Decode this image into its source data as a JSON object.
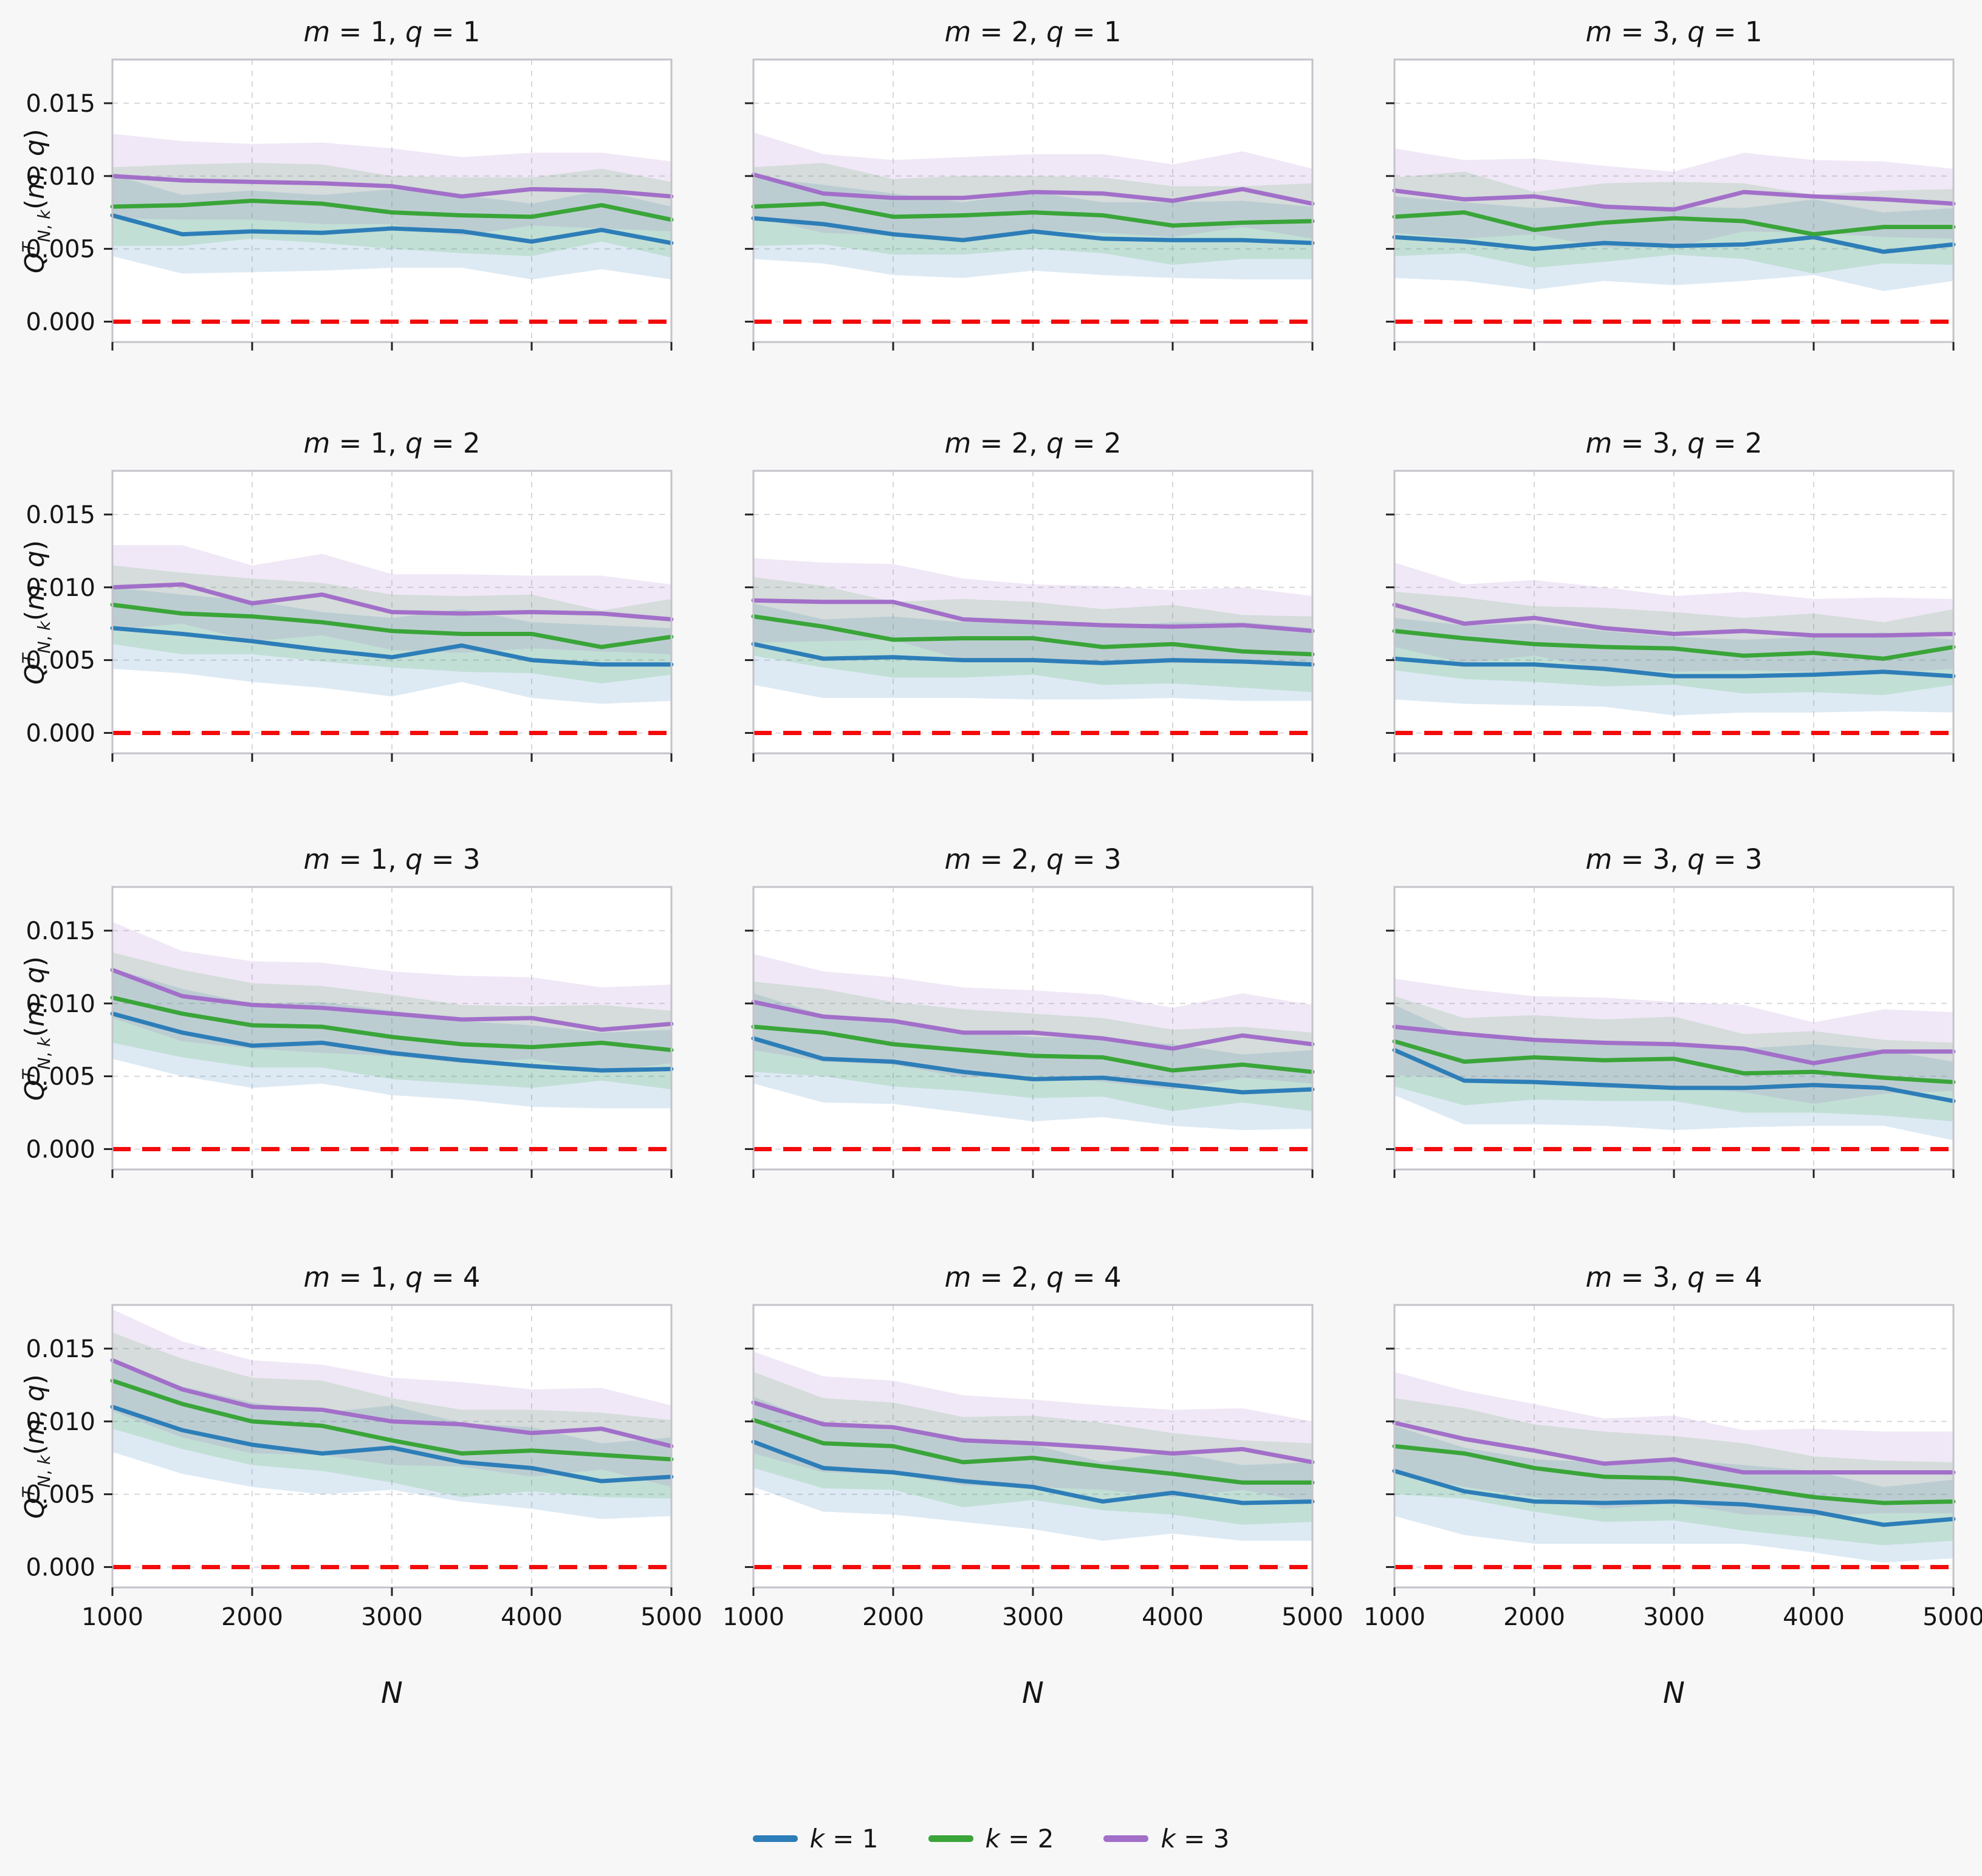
{
  "figure": {
    "xlabel": "N",
    "ylabel": {
      "base": "Q",
      "sup": "T",
      "sub": "N, k",
      "args": "(m, q)"
    },
    "x_values": [
      1000,
      1500,
      2000,
      2500,
      3000,
      3500,
      4000,
      4500,
      5000
    ],
    "x_ticks": [
      1000,
      2000,
      3000,
      4000,
      5000
    ],
    "x_tick_labels": [
      "1000",
      "2000",
      "3000",
      "4000",
      "5000"
    ],
    "x_gridlines": [
      2000,
      3000,
      4000
    ],
    "y_ticks": [
      0.0,
      0.005,
      0.01,
      0.015
    ],
    "y_tick_labels": [
      "0.000",
      "0.005",
      "0.010",
      "0.015"
    ],
    "ylim": [
      -0.0014,
      0.018
    ],
    "grid": true,
    "legend_position": "bottom-center",
    "legend": [
      {
        "label": "k = 1",
        "color": "#2d7eb8"
      },
      {
        "label": "k = 2",
        "color": "#3aa539"
      },
      {
        "label": "k = 3",
        "color": "#a26fc9"
      }
    ],
    "zero_line": {
      "y": 0.0,
      "color": "#f30b0b",
      "style": "dashed"
    },
    "background": "#f7f7f8",
    "panel_background": "#ffffff"
  },
  "chart_data": [
    {
      "type": "line",
      "title": "m = 1, q = 1",
      "m": 1,
      "q": 1,
      "series": [
        {
          "name": "k = 1",
          "values": [
            0.0073,
            0.006,
            0.0062,
            0.0061,
            0.0064,
            0.0062,
            0.0055,
            0.0063,
            0.0054
          ],
          "band_halfwidth": [
            0.0028,
            0.0027,
            0.0028,
            0.0026,
            0.0027,
            0.0025,
            0.0026,
            0.0027,
            0.0025
          ]
        },
        {
          "name": "k = 2",
          "values": [
            0.0079,
            0.008,
            0.0083,
            0.0081,
            0.0075,
            0.0073,
            0.0072,
            0.008,
            0.007
          ],
          "band_halfwidth": [
            0.0027,
            0.0028,
            0.0026,
            0.0027,
            0.0025,
            0.0026,
            0.0027,
            0.0025,
            0.0026
          ]
        },
        {
          "name": "k = 3",
          "values": [
            0.01,
            0.0097,
            0.0096,
            0.0095,
            0.0093,
            0.0086,
            0.0091,
            0.009,
            0.0086
          ],
          "band_halfwidth": [
            0.0029,
            0.0027,
            0.0026,
            0.0028,
            0.0026,
            0.0027,
            0.0025,
            0.0026,
            0.0024
          ]
        }
      ]
    },
    {
      "type": "line",
      "title": "m = 2, q = 1",
      "m": 2,
      "q": 1,
      "series": [
        {
          "name": "k = 1",
          "values": [
            0.0071,
            0.0067,
            0.006,
            0.0056,
            0.0062,
            0.0057,
            0.0056,
            0.0056,
            0.0054
          ],
          "band_halfwidth": [
            0.0028,
            0.0027,
            0.0028,
            0.0026,
            0.0027,
            0.0025,
            0.0026,
            0.0027,
            0.0025
          ]
        },
        {
          "name": "k = 2",
          "values": [
            0.0079,
            0.0081,
            0.0072,
            0.0073,
            0.0075,
            0.0073,
            0.0066,
            0.0068,
            0.0069
          ],
          "band_halfwidth": [
            0.0027,
            0.0028,
            0.0026,
            0.0027,
            0.0025,
            0.0026,
            0.0027,
            0.0025,
            0.0026
          ]
        },
        {
          "name": "k = 3",
          "values": [
            0.0101,
            0.0088,
            0.0085,
            0.0085,
            0.0089,
            0.0088,
            0.0083,
            0.0091,
            0.0081
          ],
          "band_halfwidth": [
            0.0029,
            0.0027,
            0.0026,
            0.0028,
            0.0026,
            0.0027,
            0.0025,
            0.0026,
            0.0024
          ]
        }
      ]
    },
    {
      "type": "line",
      "title": "m = 3, q = 1",
      "m": 3,
      "q": 1,
      "series": [
        {
          "name": "k = 1",
          "values": [
            0.0058,
            0.0055,
            0.005,
            0.0054,
            0.0052,
            0.0053,
            0.0058,
            0.0048,
            0.0053
          ],
          "band_halfwidth": [
            0.0028,
            0.0027,
            0.0028,
            0.0026,
            0.0027,
            0.0025,
            0.0026,
            0.0027,
            0.0025
          ]
        },
        {
          "name": "k = 2",
          "values": [
            0.0072,
            0.0075,
            0.0063,
            0.0068,
            0.0071,
            0.0069,
            0.006,
            0.0065,
            0.0065
          ],
          "band_halfwidth": [
            0.0027,
            0.0028,
            0.0026,
            0.0027,
            0.0025,
            0.0026,
            0.0027,
            0.0025,
            0.0026
          ]
        },
        {
          "name": "k = 3",
          "values": [
            0.009,
            0.0084,
            0.0086,
            0.0079,
            0.0077,
            0.0089,
            0.0086,
            0.0084,
            0.0081
          ],
          "band_halfwidth": [
            0.0029,
            0.0027,
            0.0026,
            0.0028,
            0.0026,
            0.0027,
            0.0025,
            0.0026,
            0.0024
          ]
        }
      ]
    },
    {
      "type": "line",
      "title": "m = 1, q = 2",
      "m": 1,
      "q": 2,
      "series": [
        {
          "name": "k = 1",
          "values": [
            0.0072,
            0.0068,
            0.0063,
            0.0057,
            0.0052,
            0.006,
            0.005,
            0.0047,
            0.0047
          ],
          "band_halfwidth": [
            0.0028,
            0.0027,
            0.0028,
            0.0026,
            0.0027,
            0.0025,
            0.0026,
            0.0027,
            0.0025
          ]
        },
        {
          "name": "k = 2",
          "values": [
            0.0088,
            0.0082,
            0.008,
            0.0076,
            0.007,
            0.0068,
            0.0068,
            0.0059,
            0.0066
          ],
          "band_halfwidth": [
            0.0027,
            0.0028,
            0.0026,
            0.0027,
            0.0025,
            0.0026,
            0.0027,
            0.0025,
            0.0026
          ]
        },
        {
          "name": "k = 3",
          "values": [
            0.01,
            0.0102,
            0.0089,
            0.0095,
            0.0083,
            0.0082,
            0.0083,
            0.0082,
            0.0078
          ],
          "band_halfwidth": [
            0.0029,
            0.0027,
            0.0026,
            0.0028,
            0.0026,
            0.0027,
            0.0025,
            0.0026,
            0.0024
          ]
        }
      ]
    },
    {
      "type": "line",
      "title": "m = 2, q = 2",
      "m": 2,
      "q": 2,
      "series": [
        {
          "name": "k = 1",
          "values": [
            0.0061,
            0.0051,
            0.0052,
            0.005,
            0.005,
            0.0048,
            0.005,
            0.0049,
            0.0047
          ],
          "band_halfwidth": [
            0.0028,
            0.0027,
            0.0028,
            0.0026,
            0.0027,
            0.0025,
            0.0026,
            0.0027,
            0.0025
          ]
        },
        {
          "name": "k = 2",
          "values": [
            0.008,
            0.0073,
            0.0064,
            0.0065,
            0.0065,
            0.0059,
            0.0061,
            0.0056,
            0.0054
          ],
          "band_halfwidth": [
            0.0027,
            0.0028,
            0.0026,
            0.0027,
            0.0025,
            0.0026,
            0.0027,
            0.0025,
            0.0026
          ]
        },
        {
          "name": "k = 3",
          "values": [
            0.0091,
            0.009,
            0.009,
            0.0078,
            0.0076,
            0.0074,
            0.0073,
            0.0074,
            0.007
          ],
          "band_halfwidth": [
            0.0029,
            0.0027,
            0.0026,
            0.0028,
            0.0026,
            0.0027,
            0.0025,
            0.0026,
            0.0024
          ]
        }
      ]
    },
    {
      "type": "line",
      "title": "m = 3, q = 2",
      "m": 3,
      "q": 2,
      "series": [
        {
          "name": "k = 1",
          "values": [
            0.0051,
            0.0047,
            0.0047,
            0.0044,
            0.0039,
            0.0039,
            0.004,
            0.0042,
            0.0039
          ],
          "band_halfwidth": [
            0.0028,
            0.0027,
            0.0028,
            0.0026,
            0.0027,
            0.0025,
            0.0026,
            0.0027,
            0.0025
          ]
        },
        {
          "name": "k = 2",
          "values": [
            0.007,
            0.0065,
            0.0061,
            0.0059,
            0.0058,
            0.0053,
            0.0055,
            0.0051,
            0.0059
          ],
          "band_halfwidth": [
            0.0027,
            0.0028,
            0.0026,
            0.0027,
            0.0025,
            0.0026,
            0.0027,
            0.0025,
            0.0026
          ]
        },
        {
          "name": "k = 3",
          "values": [
            0.0088,
            0.0075,
            0.0079,
            0.0072,
            0.0068,
            0.007,
            0.0067,
            0.0067,
            0.0068
          ],
          "band_halfwidth": [
            0.0029,
            0.0027,
            0.0026,
            0.0028,
            0.0026,
            0.0027,
            0.0025,
            0.0026,
            0.0024
          ]
        }
      ]
    },
    {
      "type": "line",
      "title": "m = 1, q = 3",
      "m": 1,
      "q": 3,
      "series": [
        {
          "name": "k = 1",
          "values": [
            0.0093,
            0.008,
            0.0071,
            0.0073,
            0.0066,
            0.0061,
            0.0057,
            0.0054,
            0.0055
          ],
          "band_halfwidth": [
            0.0031,
            0.003,
            0.0029,
            0.0028,
            0.0029,
            0.0027,
            0.0028,
            0.0026,
            0.0027
          ]
        },
        {
          "name": "k = 2",
          "values": [
            0.0104,
            0.0093,
            0.0085,
            0.0084,
            0.0077,
            0.0072,
            0.007,
            0.0073,
            0.0068
          ],
          "band_halfwidth": [
            0.0031,
            0.003,
            0.0029,
            0.0028,
            0.0029,
            0.0027,
            0.0028,
            0.0026,
            0.0027
          ]
        },
        {
          "name": "k = 3",
          "values": [
            0.0123,
            0.0105,
            0.0099,
            0.0097,
            0.0093,
            0.0089,
            0.009,
            0.0082,
            0.0086
          ],
          "band_halfwidth": [
            0.0033,
            0.0031,
            0.003,
            0.0031,
            0.0029,
            0.003,
            0.0028,
            0.0029,
            0.0027
          ]
        }
      ]
    },
    {
      "type": "line",
      "title": "m = 2, q = 3",
      "m": 2,
      "q": 3,
      "series": [
        {
          "name": "k = 1",
          "values": [
            0.0076,
            0.0062,
            0.006,
            0.0053,
            0.0048,
            0.0049,
            0.0044,
            0.0039,
            0.0041
          ],
          "band_halfwidth": [
            0.0031,
            0.003,
            0.0029,
            0.0028,
            0.0029,
            0.0027,
            0.0028,
            0.0026,
            0.0027
          ]
        },
        {
          "name": "k = 2",
          "values": [
            0.0084,
            0.008,
            0.0072,
            0.0068,
            0.0064,
            0.0063,
            0.0054,
            0.0058,
            0.0053
          ],
          "band_halfwidth": [
            0.0031,
            0.003,
            0.0029,
            0.0028,
            0.0029,
            0.0027,
            0.0028,
            0.0026,
            0.0027
          ]
        },
        {
          "name": "k = 3",
          "values": [
            0.0101,
            0.0091,
            0.0088,
            0.008,
            0.008,
            0.0076,
            0.0069,
            0.0078,
            0.0072
          ],
          "band_halfwidth": [
            0.0033,
            0.0031,
            0.003,
            0.0031,
            0.0029,
            0.003,
            0.0028,
            0.0029,
            0.0027
          ]
        }
      ]
    },
    {
      "type": "line",
      "title": "m = 3, q = 3",
      "m": 3,
      "q": 3,
      "series": [
        {
          "name": "k = 1",
          "values": [
            0.0068,
            0.0047,
            0.0046,
            0.0044,
            0.0042,
            0.0042,
            0.0044,
            0.0042,
            0.0033
          ],
          "band_halfwidth": [
            0.0031,
            0.003,
            0.0029,
            0.0028,
            0.0029,
            0.0027,
            0.0028,
            0.0026,
            0.0027
          ]
        },
        {
          "name": "k = 2",
          "values": [
            0.0074,
            0.006,
            0.0063,
            0.0061,
            0.0062,
            0.0052,
            0.0053,
            0.0049,
            0.0046
          ],
          "band_halfwidth": [
            0.0031,
            0.003,
            0.0029,
            0.0028,
            0.0029,
            0.0027,
            0.0028,
            0.0026,
            0.0027
          ]
        },
        {
          "name": "k = 3",
          "values": [
            0.0084,
            0.0079,
            0.0075,
            0.0073,
            0.0072,
            0.0069,
            0.0059,
            0.0067,
            0.0067
          ],
          "band_halfwidth": [
            0.0033,
            0.0031,
            0.003,
            0.0031,
            0.0029,
            0.003,
            0.0028,
            0.0029,
            0.0027
          ]
        }
      ]
    },
    {
      "type": "line",
      "title": "m = 1, q = 4",
      "m": 1,
      "q": 4,
      "series": [
        {
          "name": "k = 1",
          "values": [
            0.011,
            0.0094,
            0.0084,
            0.0078,
            0.0082,
            0.0072,
            0.0068,
            0.0059,
            0.0062
          ],
          "band_halfwidth": [
            0.0031,
            0.003,
            0.0029,
            0.0028,
            0.0029,
            0.0027,
            0.0028,
            0.0026,
            0.0027
          ]
        },
        {
          "name": "k = 2",
          "values": [
            0.0128,
            0.0112,
            0.01,
            0.0097,
            0.0087,
            0.0078,
            0.008,
            0.0077,
            0.0074
          ],
          "band_halfwidth": [
            0.0033,
            0.0031,
            0.003,
            0.0031,
            0.0029,
            0.003,
            0.0028,
            0.0029,
            0.0027
          ]
        },
        {
          "name": "k = 3",
          "values": [
            0.0142,
            0.0122,
            0.011,
            0.0108,
            0.01,
            0.0098,
            0.0092,
            0.0095,
            0.0083
          ],
          "band_halfwidth": [
            0.0035,
            0.0033,
            0.0032,
            0.0031,
            0.003,
            0.0029,
            0.003,
            0.0028,
            0.0028
          ]
        }
      ]
    },
    {
      "type": "line",
      "title": "m = 2, q = 4",
      "m": 2,
      "q": 4,
      "series": [
        {
          "name": "k = 1",
          "values": [
            0.0086,
            0.0068,
            0.0065,
            0.0059,
            0.0055,
            0.0045,
            0.0051,
            0.0044,
            0.0045
          ],
          "band_halfwidth": [
            0.0031,
            0.003,
            0.0029,
            0.0028,
            0.0029,
            0.0027,
            0.0028,
            0.0026,
            0.0027
          ]
        },
        {
          "name": "k = 2",
          "values": [
            0.0101,
            0.0085,
            0.0083,
            0.0072,
            0.0075,
            0.0069,
            0.0064,
            0.0058,
            0.0058
          ],
          "band_halfwidth": [
            0.0033,
            0.0031,
            0.003,
            0.0031,
            0.0029,
            0.003,
            0.0028,
            0.0029,
            0.0027
          ]
        },
        {
          "name": "k = 3",
          "values": [
            0.0113,
            0.0098,
            0.0096,
            0.0087,
            0.0085,
            0.0082,
            0.0078,
            0.0081,
            0.0072
          ],
          "band_halfwidth": [
            0.0035,
            0.0033,
            0.0032,
            0.0031,
            0.003,
            0.0029,
            0.003,
            0.0028,
            0.0028
          ]
        }
      ]
    },
    {
      "type": "line",
      "title": "m = 3, q = 4",
      "m": 3,
      "q": 4,
      "series": [
        {
          "name": "k = 1",
          "values": [
            0.0066,
            0.0052,
            0.0045,
            0.0044,
            0.0045,
            0.0043,
            0.0038,
            0.0029,
            0.0033
          ],
          "band_halfwidth": [
            0.0031,
            0.003,
            0.0029,
            0.0028,
            0.0029,
            0.0027,
            0.0028,
            0.0026,
            0.0027
          ]
        },
        {
          "name": "k = 2",
          "values": [
            0.0083,
            0.0078,
            0.0068,
            0.0062,
            0.0061,
            0.0055,
            0.0048,
            0.0044,
            0.0045
          ],
          "band_halfwidth": [
            0.0033,
            0.0031,
            0.003,
            0.0031,
            0.0029,
            0.003,
            0.0028,
            0.0029,
            0.0027
          ]
        },
        {
          "name": "k = 3",
          "values": [
            0.0099,
            0.0088,
            0.008,
            0.0071,
            0.0074,
            0.0065,
            0.0065,
            0.0065,
            0.0065
          ],
          "band_halfwidth": [
            0.0035,
            0.0033,
            0.0032,
            0.0031,
            0.003,
            0.0029,
            0.003,
            0.0028,
            0.0028
          ]
        }
      ]
    }
  ]
}
